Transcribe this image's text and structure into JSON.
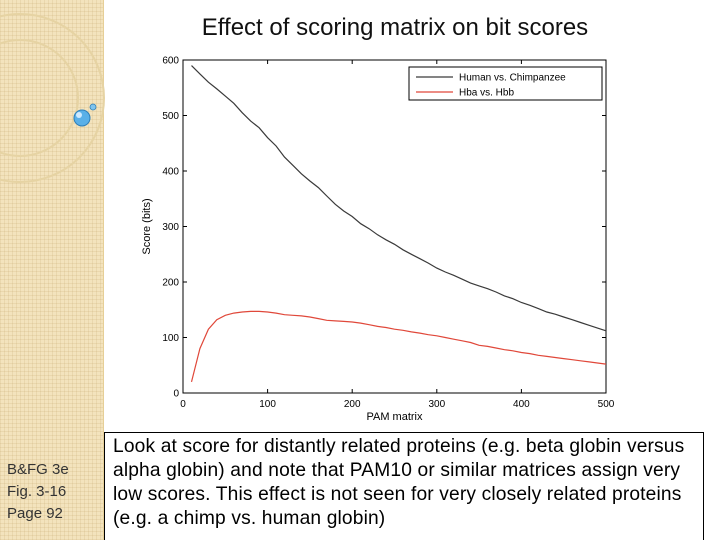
{
  "slide": {
    "title": "Effect of scoring matrix on bit scores",
    "side_note": [
      "B&FG 3e",
      "Fig. 3-16",
      "Page 92"
    ],
    "caption": "Look at score for distantly related proteins (e.g. beta globin versus alpha globin) and note that PAM10 or similar matrices assign very low scores. This effect is not seen for very closely related proteins (e.g. a chimp vs. human globin)"
  },
  "colors": {
    "series_human": "#3a3a3a",
    "series_hba": "#e0483a",
    "panel_bg": "#f3e3bd",
    "decor_circle": "#e6d3a3"
  },
  "chart_data": {
    "type": "line",
    "title": "",
    "xlabel": "PAM matrix",
    "ylabel": "Score (bits)",
    "xlim": [
      0,
      500
    ],
    "ylim": [
      0,
      600
    ],
    "xticks": [
      0,
      100,
      200,
      300,
      400,
      500
    ],
    "yticks": [
      0,
      100,
      200,
      300,
      400,
      500,
      600
    ],
    "legend_position": "top-right",
    "x": [
      10,
      20,
      30,
      40,
      50,
      60,
      70,
      80,
      90,
      100,
      110,
      120,
      130,
      140,
      150,
      160,
      170,
      180,
      190,
      200,
      210,
      220,
      230,
      240,
      250,
      260,
      270,
      280,
      290,
      300,
      310,
      320,
      330,
      340,
      350,
      360,
      370,
      380,
      390,
      400,
      410,
      420,
      430,
      440,
      450,
      460,
      470,
      480,
      490,
      500
    ],
    "series": [
      {
        "name": "Human vs. Chimpanzee",
        "color": "#3a3a3a",
        "values": [
          590,
          575,
          560,
          548,
          535,
          522,
          505,
          490,
          478,
          460,
          445,
          425,
          410,
          395,
          382,
          370,
          355,
          340,
          328,
          318,
          305,
          296,
          285,
          276,
          268,
          258,
          250,
          242,
          234,
          225,
          218,
          212,
          205,
          198,
          193,
          188,
          182,
          175,
          170,
          163,
          158,
          152,
          146,
          142,
          137,
          132,
          127,
          122,
          117,
          112
        ]
      },
      {
        "name": "Hba vs. Hbb",
        "color": "#e0483a",
        "values": [
          20,
          80,
          115,
          132,
          140,
          144,
          146,
          147,
          147,
          146,
          144,
          141,
          140,
          139,
          137,
          134,
          131,
          130,
          129,
          128,
          126,
          123,
          120,
          118,
          115,
          113,
          110,
          108,
          105,
          103,
          100,
          97,
          94,
          91,
          86,
          84,
          81,
          78,
          76,
          73,
          71,
          68,
          66,
          64,
          62,
          60,
          58,
          56,
          54,
          52
        ]
      }
    ]
  }
}
